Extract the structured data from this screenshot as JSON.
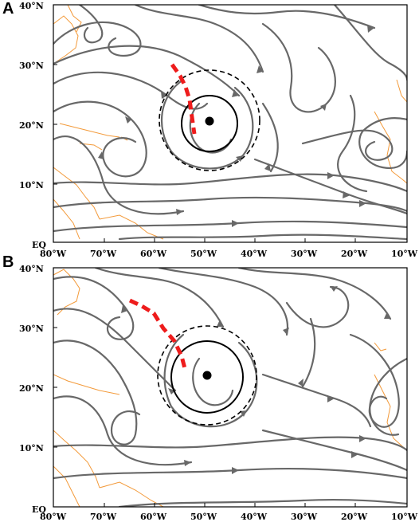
{
  "panels": [
    {
      "letter": "A",
      "lat_labels": [
        "40°N",
        "30°N",
        "20°N",
        "10°N",
        "EQ"
      ],
      "lon_labels": [
        "80°W",
        "70°W",
        "60°W",
        "50°W",
        "40°W",
        "30°W",
        "20°W",
        "10°W"
      ],
      "storm_center": {
        "lon": -50.5,
        "lat": 21
      },
      "solid_radius_deg": 5,
      "dashed_radius_deg": 8.5,
      "trough": [
        [
          -57,
          30.5
        ],
        [
          -55,
          28
        ],
        [
          -53,
          24
        ],
        [
          -52,
          19.5
        ]
      ]
    },
    {
      "letter": "B",
      "lat_labels": [
        "40°N",
        "30°N",
        "20°N",
        "10°N",
        "EQ"
      ],
      "lon_labels": [
        "80°W",
        "70°W",
        "60°W",
        "50°W",
        "40°W",
        "30°W",
        "20°W",
        "10°W"
      ],
      "storm_center": {
        "lon": -50.5,
        "lat": 22.5
      },
      "solid_radius_deg": 6,
      "dashed_radius_deg": 8.5,
      "trough": [
        [
          -64,
          34.5
        ],
        [
          -60,
          33
        ],
        [
          -57,
          30
        ],
        [
          -54.5,
          26.5
        ],
        [
          -53,
          23
        ]
      ]
    }
  ],
  "extent": {
    "lon": [
      -80,
      -10
    ],
    "lat": [
      0,
      40
    ]
  },
  "colors": {
    "streamlines": "#686868",
    "coastlines": "#f39a3a",
    "trough": "#ee1c1c",
    "circles": "#000000"
  }
}
